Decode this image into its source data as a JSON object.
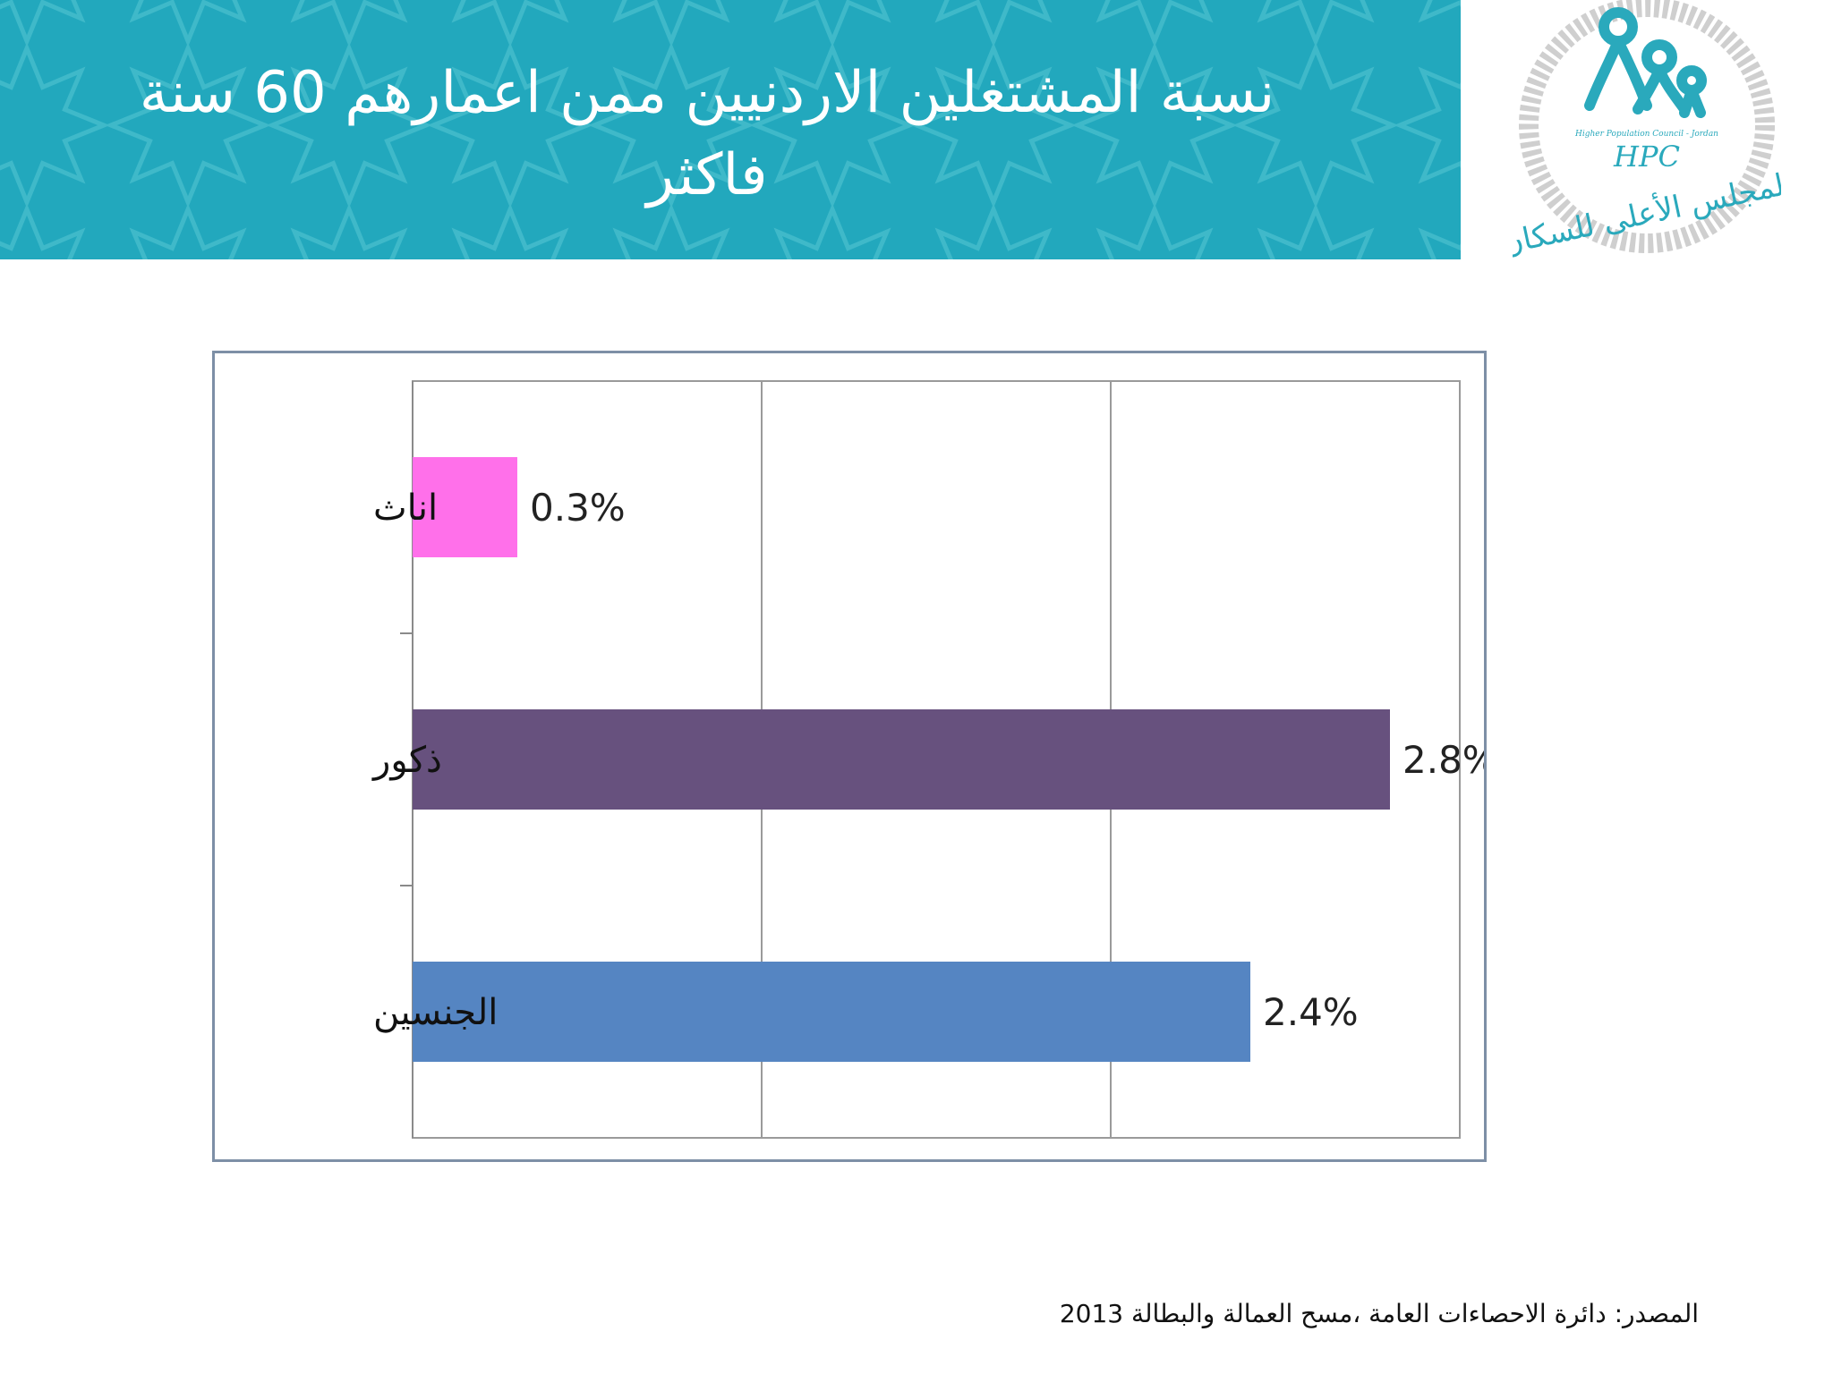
{
  "header": {
    "title": "نسبة المشتغلين الاردنيين ممن اعمارهم 60 سنة فاكثر",
    "banner_color": "#22a8bd"
  },
  "logo": {
    "initials": "HPC",
    "english_name": "Higher Population Council - Jordan",
    "arabic_name": "المجلس الأعلى للسكان",
    "color": "#2aa9bc"
  },
  "chart_data": {
    "type": "bar",
    "orientation": "horizontal",
    "categories": [
      "اناث",
      "ذكور",
      "الجنسين"
    ],
    "values": [
      0.3,
      2.8,
      2.4
    ],
    "data_labels": [
      "0.3%",
      "2.8%",
      "2.4%"
    ],
    "colors": [
      "#ff70ea",
      "#67517e",
      "#5585c2"
    ],
    "xlim": [
      0,
      3
    ],
    "grid": true,
    "title": "",
    "xlabel": "",
    "ylabel": ""
  },
  "footer": {
    "source": "المصدر: دائرة الاحصاءات العامة ،مسح العمالة والبطالة 2013"
  }
}
